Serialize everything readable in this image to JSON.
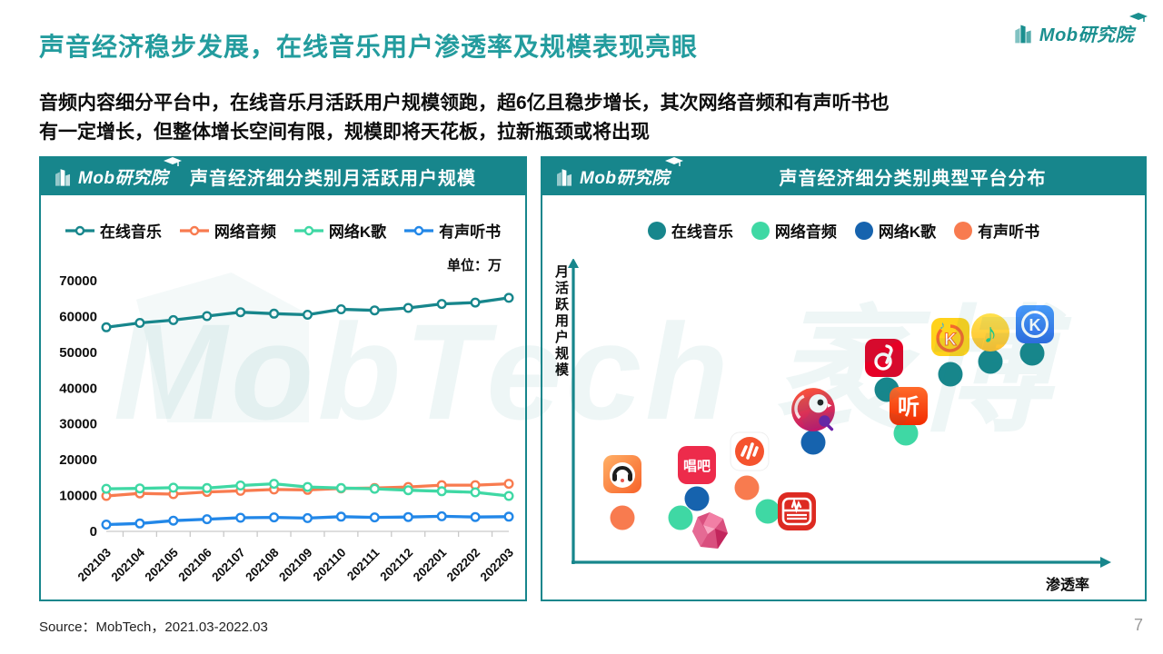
{
  "page": {
    "title": "声音经济稳步发展，在线音乐用户渗透率及规模表现亮眼",
    "subtitle_line1": "音频内容细分平台中，在线音乐月活跃用户规模领跑，超6亿且稳步增长，其次网络音频和有声听书也",
    "subtitle_line2": "有一定增长，但整体增长空间有限，规模即将天花板，拉新瓶颈或将出现",
    "brand": "Mob研究院",
    "watermark": "MobTech 袤博",
    "source": "Source：MobTech，2021.03-2022.03",
    "page_number": "7"
  },
  "colors": {
    "teal": "#17868C",
    "mint": "#3FD8A4",
    "orange": "#F87B4F",
    "bright_blue": "#2287E8",
    "dark_blue": "#1663AE",
    "title_teal": "#239C9E"
  },
  "left_panel": {
    "header_title": "声音经济细分类别月活跃用户规模",
    "unit_label": "单位：万"
  },
  "right_panel": {
    "header_title": "声音经济细分类别典型平台分布"
  },
  "chart_data": [
    {
      "type": "line",
      "title": "声音经济细分类别月活跃用户规模",
      "unit": "万",
      "categories": [
        "202103",
        "202104",
        "202105",
        "202106",
        "202107",
        "202108",
        "202109",
        "202110",
        "202111",
        "202112",
        "202201",
        "202202",
        "202203"
      ],
      "series": [
        {
          "name": "在线音乐",
          "color": "#17868C",
          "values": [
            57000,
            58200,
            59000,
            60100,
            61200,
            60800,
            60500,
            62000,
            61700,
            62400,
            63500,
            63900,
            65200
          ]
        },
        {
          "name": "网络音频",
          "color": "#F87B4F",
          "values": [
            9900,
            10600,
            10400,
            11000,
            11300,
            11700,
            11600,
            12000,
            12100,
            12400,
            12900,
            12900,
            13300
          ]
        },
        {
          "name": "网络K歌",
          "color": "#3FD8A4",
          "values": [
            11900,
            12000,
            12200,
            12100,
            12800,
            13300,
            12400,
            12100,
            11900,
            11500,
            11200,
            10900,
            9900
          ]
        },
        {
          "name": "有声听书",
          "color": "#2287E8",
          "values": [
            1900,
            2200,
            3000,
            3400,
            3800,
            3900,
            3700,
            4100,
            3900,
            4000,
            4200,
            4000,
            4100
          ]
        }
      ],
      "ylim": [
        0,
        70000
      ],
      "yticks": [
        0,
        10000,
        20000,
        30000,
        40000,
        50000,
        60000,
        70000
      ],
      "grid": false,
      "legend_position": "top"
    },
    {
      "type": "scatter",
      "title": "声音经济细分类别典型平台分布",
      "xlabel": "渗透率",
      "ylabel": "月活跃用户规模",
      "legend": [
        {
          "label": "在线音乐",
          "color": "#17868C"
        },
        {
          "label": "网络音频",
          "color": "#3FD8A4"
        },
        {
          "label": "网络K歌",
          "color": "#1663AE"
        },
        {
          "label": "有声听书",
          "color": "#F87B4F"
        }
      ],
      "points": [
        {
          "app": "懒人畅听",
          "category": "有声听书",
          "icon": "lazy-audio",
          "icon_pos": {
            "x": 9,
            "y": 28
          },
          "dot_pos": {
            "x": 9,
            "y": 12
          }
        },
        {
          "app": "唱吧",
          "category": "网络K歌",
          "icon": "changba",
          "icon_pos": {
            "x": 23,
            "y": 31
          },
          "dot_pos": {
            "x": 23,
            "y": 19
          }
        },
        {
          "app": "荔枝",
          "category": "网络音频",
          "icon": "lizhi",
          "icon_pos": {
            "x": 25.5,
            "y": 7.5
          },
          "dot_pos": {
            "x": 20,
            "y": 12
          }
        },
        {
          "app": "番茄畅听",
          "category": "有声听书",
          "icon": "tomato-changting",
          "icon_pos": {
            "x": 33,
            "y": 36
          },
          "dot_pos": {
            "x": 32.5,
            "y": 23
          }
        },
        {
          "app": "全民K歌",
          "category": "网络K歌",
          "icon": "wesing",
          "icon_pos": {
            "x": 45,
            "y": 51
          },
          "dot_pos": {
            "x": 45,
            "y": 39.5
          }
        },
        {
          "app": "蜻蜓FM",
          "category": "网络音频",
          "icon": "qingting-fm",
          "icon_pos": {
            "x": 42,
            "y": 14.5
          },
          "dot_pos": {
            "x": 36.5,
            "y": 14.5
          }
        },
        {
          "app": "网易云音乐",
          "category": "在线音乐",
          "icon": "netease-cloud-music",
          "icon_pos": {
            "x": 58.5,
            "y": 70
          },
          "dot_pos": {
            "x": 59,
            "y": 58.5
          }
        },
        {
          "app": "喜马拉雅",
          "category": "网络音频",
          "icon": "ximalaya",
          "icon_pos": {
            "x": 63,
            "y": 52.5
          },
          "dot_pos": {
            "x": 62.5,
            "y": 42.5
          }
        },
        {
          "app": "酷狗音乐",
          "category": "在线音乐",
          "icon": "kugou-music",
          "icon_pos": {
            "x": 71,
            "y": 77.5
          },
          "dot_pos": {
            "x": 71,
            "y": 64
          }
        },
        {
          "app": "QQ音乐",
          "category": "在线音乐",
          "icon": "qq-music",
          "icon_pos": {
            "x": 78.5,
            "y": 79
          },
          "dot_pos": {
            "x": 78.5,
            "y": 68.5
          }
        },
        {
          "app": "酷我音乐",
          "category": "在线音乐",
          "icon": "kuwo-music",
          "icon_pos": {
            "x": 87,
            "y": 82
          },
          "dot_pos": {
            "x": 86.5,
            "y": 71.5
          }
        }
      ]
    }
  ]
}
